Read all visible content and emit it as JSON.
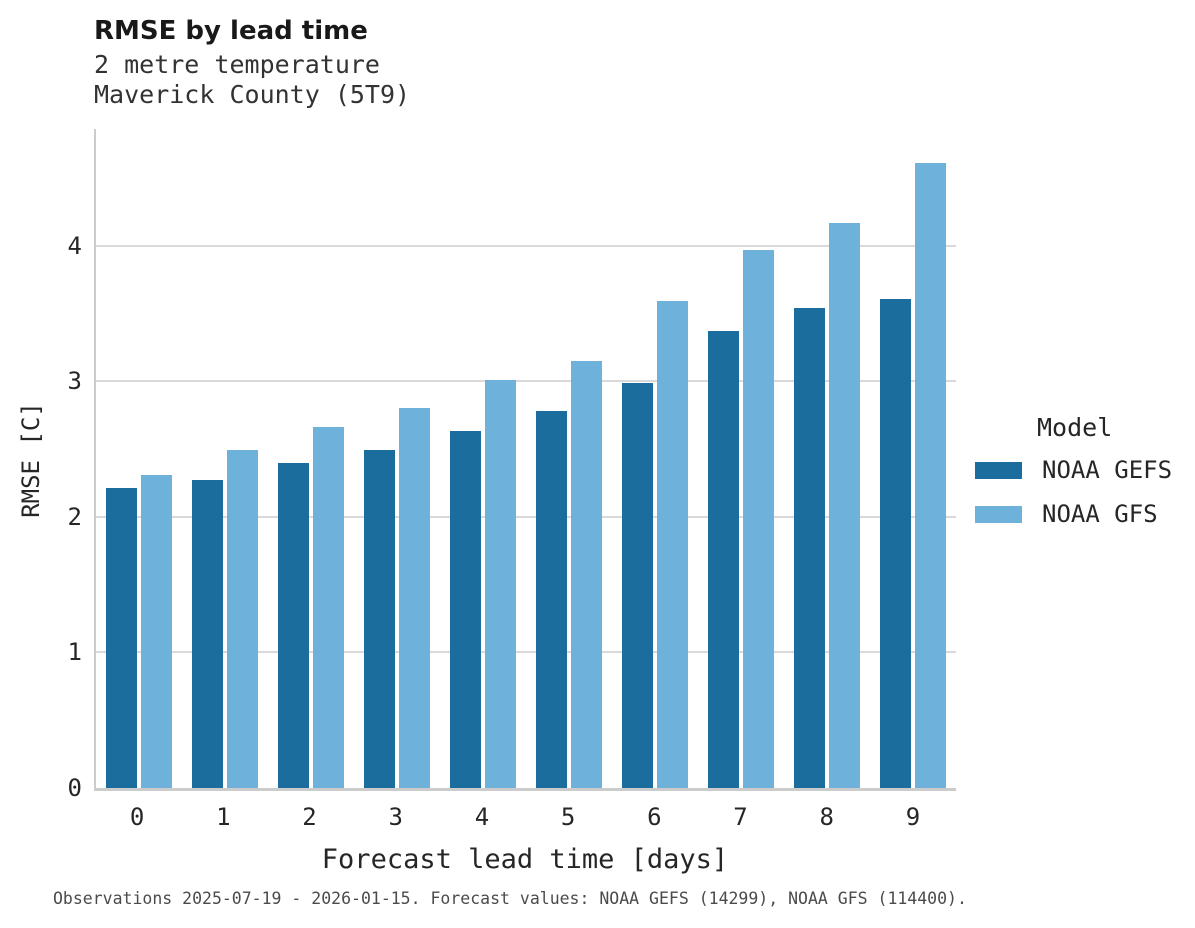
{
  "header": {
    "title": "RMSE by lead time",
    "subtitle_line1": "2 metre temperature",
    "subtitle_line2": "Maverick County (5T9)"
  },
  "legend": {
    "title": "Model",
    "entries": [
      {
        "label": "NOAA GEFS",
        "color": "#1b6d9e"
      },
      {
        "label": "NOAA GFS",
        "color": "#6eb1da"
      }
    ]
  },
  "footer": {
    "caption": "Observations 2025-07-19 - 2026-01-15. Forecast values: NOAA GEFS (14299), NOAA GFS (114400)."
  },
  "colors": {
    "series_dark": "#1b6d9e",
    "series_light": "#6eb1da",
    "gridline": "#d9d9d9",
    "spine": "#cccccc"
  },
  "chart_data": {
    "type": "bar",
    "title": "RMSE by lead time",
    "subtitle": "2 metre temperature / Maverick County (5T9)",
    "xlabel": "Forecast lead time [days]",
    "ylabel": "RMSE [C]",
    "categories": [
      "0",
      "1",
      "2",
      "3",
      "4",
      "5",
      "6",
      "7",
      "8",
      "9"
    ],
    "series": [
      {
        "name": "NOAA GEFS",
        "color": "#1b6d9e",
        "values": [
          2.21,
          2.27,
          2.4,
          2.49,
          2.63,
          2.78,
          2.99,
          3.37,
          3.54,
          3.61
        ]
      },
      {
        "name": "NOAA GFS",
        "color": "#6eb1da",
        "values": [
          2.31,
          2.49,
          2.66,
          2.8,
          3.01,
          3.15,
          3.59,
          3.97,
          4.17,
          4.61
        ]
      }
    ],
    "ylim": [
      0,
      4.86
    ],
    "yticks": [
      0,
      1,
      2,
      3,
      4
    ],
    "grid": "horizontal",
    "legend_title": "Model",
    "legend_position": "right"
  }
}
